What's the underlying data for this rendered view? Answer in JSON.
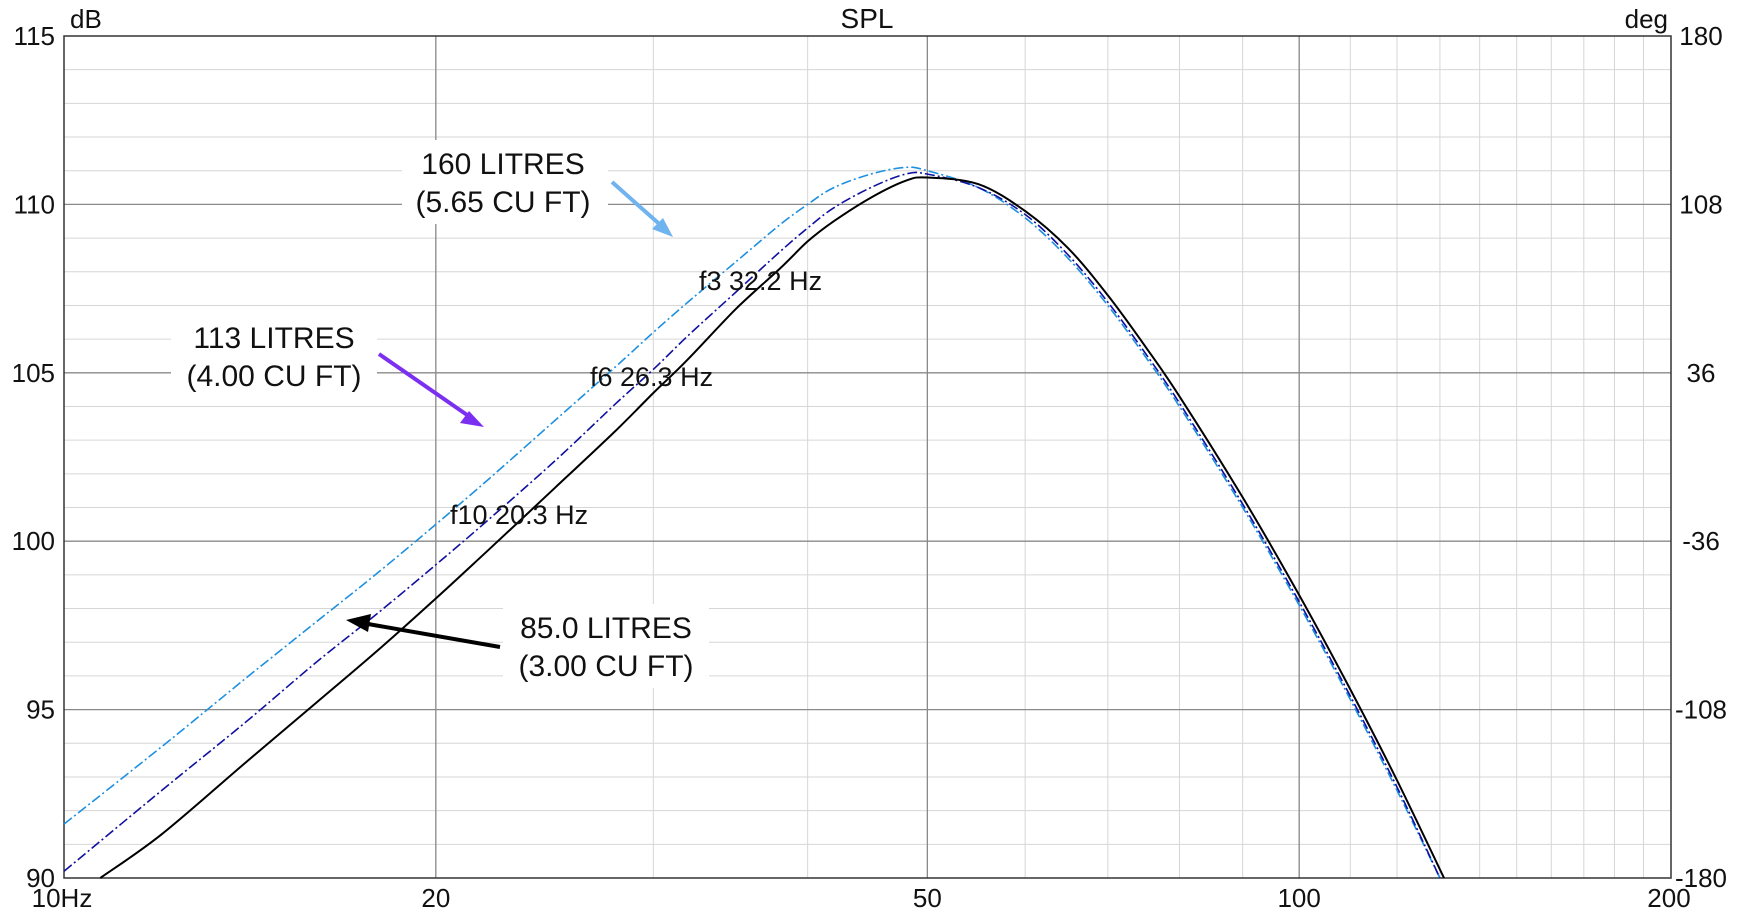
{
  "chart_data": {
    "type": "line",
    "title": "SPL",
    "ylabel_left": "dB",
    "ylabel_right": "deg",
    "x_scale": "log",
    "xlim": [
      10,
      200
    ],
    "ylim": [
      90,
      115
    ],
    "y2lim": [
      -180,
      180
    ],
    "grid": true,
    "x_ticks": [
      {
        "value": 10,
        "label": "10Hz"
      },
      {
        "value": 20,
        "label": "20"
      },
      {
        "value": 50,
        "label": "50"
      },
      {
        "value": 100,
        "label": "100"
      },
      {
        "value": 200,
        "label": "200"
      }
    ],
    "y_ticks": [
      {
        "value": 90,
        "label": "90"
      },
      {
        "value": 95,
        "label": "95"
      },
      {
        "value": 100,
        "label": "100"
      },
      {
        "value": 105,
        "label": "105"
      },
      {
        "value": 110,
        "label": "110"
      },
      {
        "value": 115,
        "label": "115"
      }
    ],
    "y2_ticks": [
      {
        "value": -180,
        "label": "-180"
      },
      {
        "value": -108,
        "label": "-108"
      },
      {
        "value": -36,
        "label": "-36"
      },
      {
        "value": 36,
        "label": "36"
      },
      {
        "value": 108,
        "label": "108"
      },
      {
        "value": 180,
        "label": "180"
      }
    ],
    "series": [
      {
        "color": "#1e90e0",
        "style": "dashdot",
        "points": [
          [
            10,
            91.6
          ],
          [
            12,
            93.9
          ],
          [
            14,
            95.9
          ],
          [
            16,
            97.6
          ],
          [
            18,
            99.1
          ],
          [
            20,
            100.5
          ],
          [
            22,
            101.8
          ],
          [
            25,
            103.6
          ],
          [
            28,
            105.2
          ],
          [
            30,
            106.2
          ],
          [
            32,
            107.1
          ],
          [
            35,
            108.3
          ],
          [
            38,
            109.4
          ],
          [
            40,
            110.0
          ],
          [
            42,
            110.5
          ],
          [
            45,
            110.9
          ],
          [
            48,
            111.1
          ],
          [
            50,
            111.0
          ],
          [
            55,
            110.5
          ],
          [
            60,
            109.6
          ],
          [
            65,
            108.4
          ],
          [
            70,
            107.0
          ],
          [
            75,
            105.5
          ],
          [
            80,
            104.0
          ],
          [
            90,
            101.0
          ],
          [
            100,
            98.1
          ],
          [
            110,
            95.3
          ],
          [
            120,
            92.6
          ],
          [
            130,
            90.0
          ]
        ]
      },
      {
        "color": "#1010a0",
        "style": "dashdot",
        "points": [
          [
            10,
            90.2
          ],
          [
            12,
            92.6
          ],
          [
            14,
            94.6
          ],
          [
            16,
            96.4
          ],
          [
            18,
            97.9
          ],
          [
            20,
            99.3
          ],
          [
            22,
            100.6
          ],
          [
            25,
            102.4
          ],
          [
            28,
            104.1
          ],
          [
            30,
            105.1
          ],
          [
            32,
            106.1
          ],
          [
            35,
            107.4
          ],
          [
            38,
            108.6
          ],
          [
            40,
            109.3
          ],
          [
            42,
            109.9
          ],
          [
            45,
            110.5
          ],
          [
            48,
            110.9
          ],
          [
            50,
            110.9
          ],
          [
            55,
            110.5
          ],
          [
            60,
            109.7
          ],
          [
            65,
            108.5
          ],
          [
            70,
            107.1
          ],
          [
            75,
            105.6
          ],
          [
            80,
            104.1
          ],
          [
            90,
            101.1
          ],
          [
            100,
            98.2
          ],
          [
            110,
            95.4
          ],
          [
            120,
            92.7
          ],
          [
            130,
            90.0
          ]
        ]
      },
      {
        "color": "#000000",
        "style": "solid",
        "points": [
          [
            10.7,
            90.0
          ],
          [
            12,
            91.3
          ],
          [
            14,
            93.4
          ],
          [
            16,
            95.2
          ],
          [
            18,
            96.8
          ],
          [
            20,
            98.3
          ],
          [
            22,
            99.7
          ],
          [
            25,
            101.6
          ],
          [
            28,
            103.3
          ],
          [
            30,
            104.4
          ],
          [
            32,
            105.4
          ],
          [
            35,
            106.9
          ],
          [
            38,
            108.1
          ],
          [
            40,
            108.9
          ],
          [
            42,
            109.5
          ],
          [
            45,
            110.2
          ],
          [
            48,
            110.7
          ],
          [
            50,
            110.8
          ],
          [
            55,
            110.6
          ],
          [
            60,
            109.8
          ],
          [
            65,
            108.7
          ],
          [
            70,
            107.3
          ],
          [
            75,
            105.8
          ],
          [
            80,
            104.3
          ],
          [
            90,
            101.3
          ],
          [
            100,
            98.4
          ],
          [
            110,
            95.6
          ],
          [
            120,
            92.9
          ],
          [
            131,
            90.0
          ]
        ]
      }
    ],
    "annotations": [
      {
        "line1": "160 LITRES",
        "line2": "(5.65 CU FT)",
        "arrow_color": "#6fb3ef"
      },
      {
        "line1": "113 LITRES",
        "line2": "(4.00 CU FT)",
        "arrow_color": "#7b2ff0"
      },
      {
        "line1": "85.0 LITRES",
        "line2": "(3.00 CU FT)",
        "arrow_color": "#000000"
      }
    ],
    "markers": [
      {
        "label": "f3 32.2 Hz",
        "freq": 32.2
      },
      {
        "label": "f6 26.3 Hz",
        "freq": 26.3
      },
      {
        "label": "f10 20.3 Hz",
        "freq": 20.3
      }
    ]
  }
}
